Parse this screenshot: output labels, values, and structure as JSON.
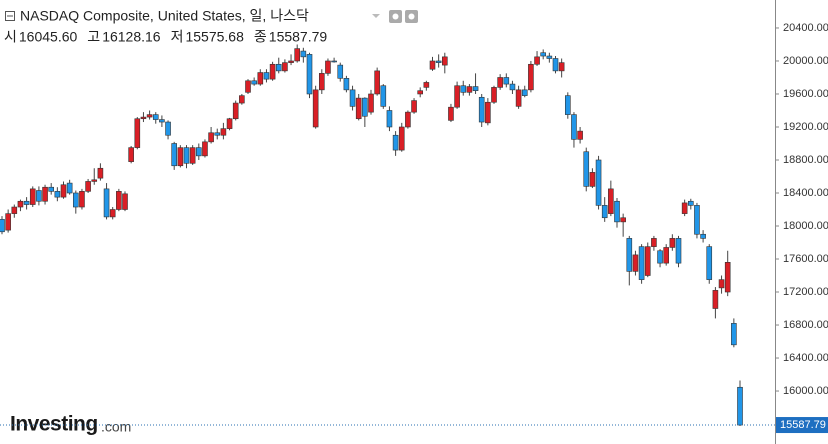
{
  "chart_data": {
    "type": "candlestick",
    "title": "NASDAQ Composite, United States, 일, 나스닥",
    "ohlc_header": [
      {
        "label": "시",
        "value": "16045.60"
      },
      {
        "label": "고",
        "value": "16128.16"
      },
      {
        "label": "저",
        "value": "15575.68"
      },
      {
        "label": "종",
        "value": "15587.79"
      }
    ],
    "watermark": {
      "brand": "Investing",
      "suffix": ".com"
    },
    "up_color": "#d91f26",
    "down_color": "#2196e8",
    "ylim": [
      15358,
      20739
    ],
    "yticks": [
      {
        "value": 16000,
        "label": "16000.00"
      },
      {
        "value": 16400,
        "label": "16400.00"
      },
      {
        "value": 16800,
        "label": "16800.00"
      },
      {
        "value": 17200,
        "label": "17200.00"
      },
      {
        "value": 17600,
        "label": "17600.00"
      },
      {
        "value": 18000,
        "label": "18000.00"
      },
      {
        "value": 18400,
        "label": "18400.00"
      },
      {
        "value": 18800,
        "label": "18800.00"
      },
      {
        "value": 19200,
        "label": "19200.00"
      },
      {
        "value": 19600,
        "label": "19600.00"
      },
      {
        "value": 20000,
        "label": "20000.00"
      },
      {
        "value": 20400,
        "label": "20400.00"
      }
    ],
    "last_price": {
      "value": 15587.79,
      "label": "15587.79"
    },
    "open": [
      18080,
      17950,
      18150,
      18230,
      18300,
      18260,
      18430,
      18300,
      18470,
      18420,
      18350,
      18520,
      18400,
      18230,
      18420,
      18540,
      18580,
      18450,
      18110,
      18200,
      18200,
      18780,
      18950,
      19300,
      19320,
      19350,
      19290,
      19260,
      19000,
      18730,
      18950,
      18760,
      18950,
      18850,
      19020,
      19130,
      19100,
      19180,
      19300,
      19490,
      19620,
      19760,
      19720,
      19860,
      19780,
      19960,
      19880,
      19980,
      20000,
      20120,
      20080,
      19200,
      19650,
      19850,
      20000,
      19950,
      19790,
      19650,
      19300,
      19550,
      19380,
      19600,
      19700,
      19400,
      19100,
      18920,
      19200,
      19380,
      19600,
      19680,
      19900,
      20000,
      19950,
      19280,
      19440,
      19700,
      19620,
      19690,
      19560,
      19250,
      19500,
      19680,
      19800,
      19720,
      19450,
      19650,
      19650,
      19960,
      20100,
      20060,
      20030,
      19880,
      19580,
      19350,
      19050,
      18900,
      18480,
      18800,
      18250,
      18150,
      18300,
      18050,
      17850,
      17450,
      17750,
      17400,
      17750,
      17700,
      17550,
      17740,
      17850,
      18150,
      18300,
      18250,
      17900,
      17750,
      17000,
      17250,
      17200,
      16820,
      16045.6
    ],
    "high": [
      18120,
      18200,
      18260,
      18320,
      18350,
      18480,
      18480,
      18500,
      18520,
      18470,
      18540,
      18560,
      18430,
      18450,
      18570,
      18700,
      18760,
      18520,
      18230,
      18450,
      18420,
      18970,
      19320,
      19380,
      19400,
      19380,
      19340,
      19280,
      19020,
      18980,
      18980,
      18980,
      19000,
      19050,
      19200,
      19180,
      19250,
      19310,
      19520,
      19600,
      19780,
      19800,
      19900,
      19900,
      19990,
      20040,
      20020,
      20080,
      20200,
      20160,
      20100,
      19700,
      19900,
      20030,
      20040,
      19980,
      19820,
      19700,
      19600,
      19560,
      19650,
      19920,
      19720,
      19450,
      19150,
      19250,
      19400,
      19550,
      19680,
      19760,
      20050,
      20080,
      20100,
      19480,
      19750,
      19760,
      19720,
      19850,
      19600,
      19550,
      19700,
      19840,
      19850,
      19760,
      19700,
      19700,
      20000,
      20120,
      20140,
      20100,
      20060,
      20030,
      19620,
      19380,
      19200,
      18950,
      18700,
      18850,
      18350,
      18550,
      18340,
      18150,
      17880,
      17700,
      17780,
      17800,
      17880,
      17720,
      17780,
      17900,
      17880,
      18320,
      18330,
      18280,
      17950,
      17780,
      17260,
      17400,
      17700,
      16880,
      16128.16
    ],
    "low": [
      17900,
      17920,
      18100,
      18180,
      18200,
      18230,
      18250,
      18260,
      18380,
      18300,
      18330,
      18380,
      18150,
      18200,
      18400,
      18500,
      18550,
      18080,
      18080,
      18180,
      18180,
      18760,
      18930,
      19260,
      19290,
      19240,
      19200,
      19050,
      18680,
      18710,
      18700,
      18740,
      18800,
      18830,
      19000,
      19050,
      19050,
      19160,
      19280,
      19470,
      19600,
      19700,
      19700,
      19740,
      19760,
      19850,
      19860,
      19950,
      19980,
      19980,
      19550,
      19180,
      19600,
      19820,
      19980,
      19750,
      19620,
      19400,
      19280,
      19200,
      19350,
      19580,
      19420,
      19150,
      18850,
      18900,
      19180,
      19360,
      19560,
      19640,
      19880,
      19920,
      19850,
      19260,
      19420,
      19580,
      19580,
      19600,
      19200,
      19220,
      19480,
      19650,
      19680,
      19600,
      19420,
      19560,
      19620,
      19940,
      20020,
      19980,
      19850,
      19800,
      19300,
      18950,
      19000,
      18420,
      18460,
      18200,
      18050,
      18120,
      17980,
      17870,
      17280,
      17400,
      17300,
      17380,
      17700,
      17500,
      17520,
      17700,
      17500,
      18120,
      18200,
      17850,
      17800,
      17300,
      16880,
      17180,
      17150,
      16530,
      15575.68
    ],
    "close": [
      17930,
      18150,
      18230,
      18300,
      18260,
      18450,
      18300,
      18470,
      18420,
      18350,
      18500,
      18400,
      18230,
      18420,
      18540,
      18560,
      18700,
      18110,
      18200,
      18420,
      18390,
      18950,
      19300,
      19320,
      19350,
      19290,
      19260,
      19100,
      18730,
      18950,
      18760,
      18950,
      18850,
      19020,
      19130,
      19100,
      19180,
      19300,
      19490,
      19580,
      19760,
      19720,
      19860,
      19780,
      19960,
      19880,
      19980,
      20000,
      20150,
      20050,
      19600,
      19650,
      19850,
      20000,
      19990,
      19790,
      19650,
      19450,
      19550,
      19330,
      19600,
      19880,
      19450,
      19200,
      18920,
      19200,
      19380,
      19520,
      19640,
      19740,
      20000,
      19980,
      20050,
      19440,
      19700,
      19620,
      19690,
      19640,
      19260,
      19500,
      19680,
      19800,
      19720,
      19650,
      19650,
      19580,
      19960,
      20050,
      20060,
      20030,
      19880,
      19980,
      19350,
      19050,
      19150,
      18480,
      18650,
      18250,
      18100,
      18450,
      18050,
      18100,
      17450,
      17650,
      17350,
      17750,
      17850,
      17550,
      17740,
      17850,
      17550,
      18280,
      18250,
      17900,
      17850,
      17350,
      17220,
      17350,
      17560,
      16560,
      15587.79
    ]
  }
}
